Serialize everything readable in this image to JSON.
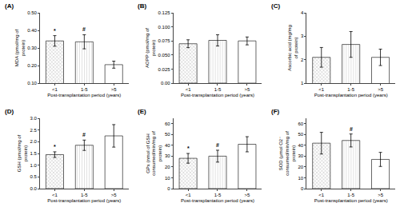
{
  "chart_data": [
    {
      "type": "bar",
      "title": "(A)",
      "x_label": "Post-transplantation period (years)",
      "y_label": "MDA (pmol/mg of protein)",
      "categories": [
        "<1",
        "1-5",
        ">5"
      ],
      "values": [
        0.34,
        0.335,
        0.205
      ],
      "errors": [
        0.03,
        0.04,
        0.02
      ],
      "colors": [
        "#b0b0b0",
        "#d8d8d8",
        "#ffffff"
      ],
      "ylim": [
        0.1,
        0.5
      ],
      "yticks": [
        {
          "value": 0.1,
          "label": "0.10"
        },
        {
          "value": 0.2,
          "label": "0.20"
        },
        {
          "value": 0.3,
          "label": "0.30"
        },
        {
          "value": 0.4,
          "label": "0.40"
        },
        {
          "value": 0.5,
          "label": "0.50"
        }
      ],
      "annotations": [
        {
          "category": "<1",
          "text": "*"
        },
        {
          "category": "1-5",
          "text": "#"
        }
      ],
      "grid": false
    },
    {
      "type": "bar",
      "title": "(B)",
      "x_label": "Post-transplantation period (years)",
      "y_label": "AOPP (pmol/mg of protein)",
      "categories": [
        "<1",
        "1-5",
        ">5"
      ],
      "values": [
        0.07,
        0.076,
        0.075
      ],
      "errors": [
        0.007,
        0.01,
        0.007
      ],
      "colors": [
        "#b0b0b0",
        "#d8d8d8",
        "#ffffff"
      ],
      "ylim": [
        0.0,
        0.125
      ],
      "yticks": [
        {
          "value": 0.0,
          "label": "0.00"
        },
        0.025,
        {
          "value": 0.05,
          "label": "0.050"
        },
        0.075,
        {
          "value": 0.1,
          "label": "0.100"
        },
        0.125
      ],
      "annotations": [],
      "grid": false
    },
    {
      "type": "bar",
      "title": "(C)",
      "x_label": "Post-transplantation period (years)",
      "y_label": "Ascorbic acid (mg/mg of protein)",
      "categories": [
        "<1",
        "1-5",
        ">5"
      ],
      "values": [
        2.1,
        2.65,
        2.1
      ],
      "errors": [
        0.42,
        0.55,
        0.35
      ],
      "colors": [
        "#b0b0b0",
        "#d8d8d8",
        "#ffffff"
      ],
      "ylim": [
        1.0,
        4.0
      ],
      "yticks": [
        1,
        2,
        3,
        4
      ],
      "annotations": [],
      "grid": false
    },
    {
      "type": "bar",
      "title": "(D)",
      "x_label": "Post-transplantation period (years)",
      "y_label": "GSH (pmol/mg of protein)",
      "categories": [
        "<1",
        "1-5",
        ">5"
      ],
      "values": [
        1.45,
        1.85,
        2.25
      ],
      "errors": [
        0.12,
        0.22,
        0.48
      ],
      "colors": [
        "#b0b0b0",
        "#d8d8d8",
        "#ffffff"
      ],
      "ylim": [
        0.0,
        3.0
      ],
      "yticks": [
        {
          "value": 0.0,
          "label": "0.0"
        },
        0.5,
        {
          "value": 1.0,
          "label": "1.0"
        },
        1.5,
        {
          "value": 2.0,
          "label": "2.0"
        },
        2.5,
        {
          "value": 3.0,
          "label": "3.0"
        }
      ],
      "annotations": [
        {
          "category": "<1",
          "text": "*"
        },
        {
          "category": "1-5",
          "text": "#"
        }
      ],
      "grid": false
    },
    {
      "type": "bar",
      "title": "(E)",
      "x_label": "Post-transplantation period (years)",
      "y_label": "GPx (nmol of GSH consumed/min/mg of protein)",
      "categories": [
        "<1",
        "1-5",
        ">5"
      ],
      "values": [
        28.0,
        30.0,
        41.0
      ],
      "errors": [
        4.5,
        5.5,
        7.0
      ],
      "colors": [
        "#b0b0b0",
        "#d8d8d8",
        "#ffffff"
      ],
      "ylim": [
        0,
        65
      ],
      "yticks": [
        0,
        10,
        20,
        30,
        40,
        50,
        60
      ],
      "annotations": [
        {
          "category": "<1",
          "text": "*"
        },
        {
          "category": "1-5",
          "text": "#"
        }
      ],
      "grid": false
    },
    {
      "type": "bar",
      "title": "(F)",
      "x_label": "Post-transplantation period (years)",
      "y_label": "SOD (μmol O2⁻ consumed/min/mg of protein)",
      "categories": [
        "<1",
        "1-5",
        ">5"
      ],
      "values": [
        42.0,
        44.5,
        27.0
      ],
      "errors": [
        10.0,
        6.0,
        6.5
      ],
      "colors": [
        "#b0b0b0",
        "#d8d8d8",
        "#ffffff"
      ],
      "ylim": [
        0,
        65
      ],
      "yticks": [
        0,
        10,
        20,
        30,
        40,
        50,
        60
      ],
      "annotations": [
        {
          "category": "1-5",
          "text": "#"
        }
      ],
      "grid": false
    }
  ]
}
